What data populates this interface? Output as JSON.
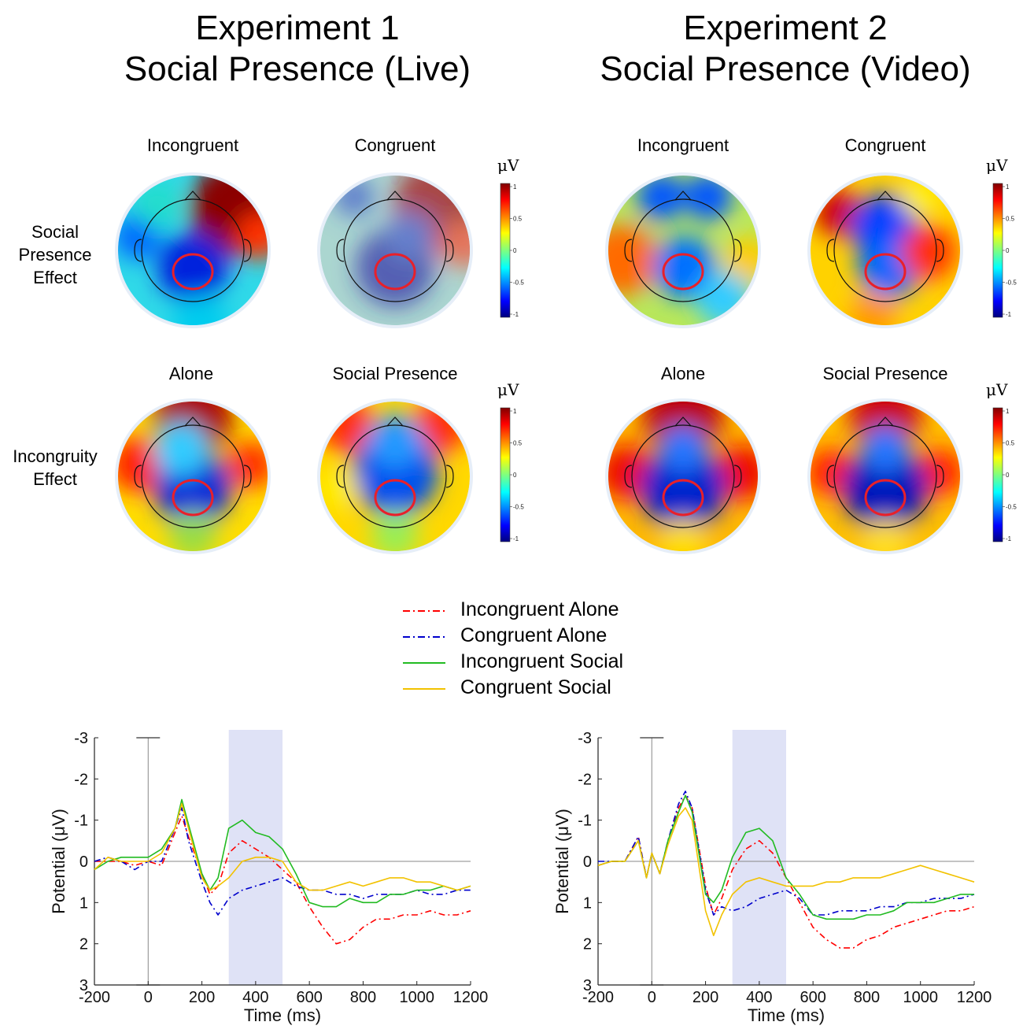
{
  "experiments": [
    {
      "title_line1": "Experiment 1",
      "title_line2": "Social Presence (Live)",
      "map_labels": {
        "row1_left": "Incongruent",
        "row1_right": "Congruent",
        "row2_left": "Alone",
        "row2_right": "Social Presence"
      }
    },
    {
      "title_line1": "Experiment 2",
      "title_line2": "Social Presence (Video)",
      "map_labels": {
        "row1_left": "Incongruent",
        "row1_right": "Congruent",
        "row2_left": "Alone",
        "row2_right": "Social Presence"
      }
    }
  ],
  "row_labels": {
    "row1_line1": "Social",
    "row1_line2": "Presence",
    "row1_line3": "Effect",
    "row2_line1": "Incongruity",
    "row2_line2": "Effect"
  },
  "colorbar": {
    "unit": "μV",
    "ticks": [
      "1",
      "0.5",
      "0",
      "-0.5",
      "-1"
    ],
    "colormap": "jet"
  },
  "legend": [
    {
      "label": "Incongruent Alone",
      "color": "#ff0000",
      "style": "dash-dot"
    },
    {
      "label": "Congruent Alone",
      "color": "#0000cc",
      "style": "dash-dot"
    },
    {
      "label": "Incongruent Social",
      "color": "#22bb22",
      "style": "solid"
    },
    {
      "label": "Congruent Social",
      "color": "#f2c200",
      "style": "solid"
    }
  ],
  "chart_data": [
    {
      "type": "line",
      "xlabel": "Time (ms)",
      "ylabel": "Potential (μV)",
      "xlim": [
        -200,
        1200
      ],
      "ylim": [
        -3,
        3
      ],
      "y_reversed": true,
      "xticks": [
        -200,
        0,
        200,
        400,
        600,
        800,
        1000,
        1200
      ],
      "yticks": [
        -3,
        -2,
        -1,
        0,
        1,
        2,
        3
      ],
      "shaded_window": [
        300,
        500
      ],
      "series": [
        {
          "name": "Incongruent Alone",
          "x": [
            -200,
            -150,
            -100,
            -50,
            0,
            50,
            100,
            125,
            150,
            200,
            230,
            260,
            300,
            350,
            400,
            450,
            500,
            550,
            600,
            650,
            700,
            750,
            800,
            850,
            900,
            950,
            1000,
            1050,
            1100,
            1150,
            1200
          ],
          "y": [
            0.0,
            0.0,
            0.0,
            0.1,
            0.0,
            0.1,
            -0.7,
            -1.1,
            -0.6,
            0.3,
            0.8,
            0.6,
            -0.2,
            -0.5,
            -0.3,
            -0.1,
            0.2,
            0.5,
            1.1,
            1.6,
            2.0,
            1.9,
            1.6,
            1.4,
            1.4,
            1.3,
            1.3,
            1.2,
            1.3,
            1.3,
            1.2
          ]
        },
        {
          "name": "Congruent Alone",
          "x": [
            -200,
            -150,
            -100,
            -50,
            0,
            50,
            100,
            125,
            150,
            200,
            230,
            260,
            300,
            350,
            400,
            450,
            500,
            550,
            600,
            650,
            700,
            750,
            800,
            850,
            900,
            950,
            1000,
            1050,
            1100,
            1150,
            1200
          ],
          "y": [
            0.0,
            -0.1,
            0.0,
            0.2,
            0.0,
            0.0,
            -0.8,
            -1.3,
            -0.5,
            0.5,
            1.0,
            1.3,
            0.9,
            0.7,
            0.6,
            0.5,
            0.4,
            0.6,
            0.7,
            0.7,
            0.8,
            0.8,
            0.9,
            0.8,
            0.8,
            0.8,
            0.7,
            0.8,
            0.8,
            0.7,
            0.7
          ]
        },
        {
          "name": "Incongruent Social",
          "x": [
            -200,
            -150,
            -100,
            -50,
            0,
            50,
            100,
            125,
            150,
            200,
            230,
            260,
            300,
            350,
            400,
            450,
            500,
            550,
            600,
            650,
            700,
            750,
            800,
            850,
            900,
            950,
            1000,
            1050,
            1100,
            1150,
            1200
          ],
          "y": [
            0.2,
            0.0,
            -0.1,
            -0.1,
            -0.1,
            -0.3,
            -0.8,
            -1.5,
            -0.9,
            0.3,
            0.7,
            0.4,
            -0.8,
            -1.0,
            -0.7,
            -0.6,
            -0.3,
            0.3,
            1.0,
            1.1,
            1.1,
            0.9,
            1.0,
            1.0,
            0.8,
            0.8,
            0.7,
            0.7,
            0.6,
            0.7,
            0.6
          ]
        },
        {
          "name": "Congruent Social",
          "x": [
            -200,
            -150,
            -100,
            -50,
            0,
            50,
            100,
            125,
            150,
            200,
            230,
            260,
            300,
            350,
            400,
            450,
            500,
            550,
            600,
            650,
            700,
            750,
            800,
            850,
            900,
            950,
            1000,
            1050,
            1100,
            1150,
            1200
          ],
          "y": [
            0.2,
            -0.1,
            0.0,
            0.0,
            0.0,
            -0.2,
            -0.8,
            -1.4,
            -0.8,
            0.4,
            0.7,
            0.6,
            0.4,
            0.0,
            -0.1,
            -0.1,
            0.0,
            0.5,
            0.7,
            0.7,
            0.6,
            0.5,
            0.6,
            0.5,
            0.4,
            0.4,
            0.5,
            0.5,
            0.6,
            0.7,
            0.6
          ]
        }
      ]
    },
    {
      "type": "line",
      "xlabel": "Time (ms)",
      "ylabel": "Potential (μV)",
      "xlim": [
        -200,
        1200
      ],
      "ylim": [
        -3,
        3
      ],
      "y_reversed": true,
      "xticks": [
        -200,
        0,
        200,
        400,
        600,
        800,
        1000,
        1200
      ],
      "yticks": [
        -3,
        -2,
        -1,
        0,
        1,
        2,
        3
      ],
      "shaded_window": [
        300,
        500
      ],
      "series": [
        {
          "name": "Incongruent Alone",
          "x": [
            -200,
            -150,
            -100,
            -50,
            -20,
            0,
            30,
            60,
            100,
            125,
            150,
            200,
            230,
            260,
            300,
            350,
            400,
            450,
            500,
            550,
            600,
            650,
            700,
            750,
            800,
            850,
            900,
            950,
            1000,
            1050,
            1100,
            1150,
            1200
          ],
          "y": [
            0.1,
            0.0,
            0.0,
            -0.6,
            0.4,
            -0.2,
            0.3,
            -0.5,
            -1.3,
            -1.6,
            -1.3,
            0.6,
            1.3,
            0.9,
            0.2,
            -0.3,
            -0.5,
            -0.2,
            0.4,
            1.0,
            1.6,
            1.9,
            2.1,
            2.1,
            1.9,
            1.8,
            1.6,
            1.5,
            1.4,
            1.3,
            1.2,
            1.2,
            1.1
          ]
        },
        {
          "name": "Congruent Alone",
          "x": [
            -200,
            -150,
            -100,
            -50,
            -20,
            0,
            30,
            60,
            100,
            125,
            150,
            200,
            230,
            260,
            300,
            350,
            400,
            450,
            500,
            550,
            600,
            650,
            700,
            750,
            800,
            850,
            900,
            950,
            1000,
            1050,
            1100,
            1150,
            1200
          ],
          "y": [
            0.0,
            0.0,
            0.0,
            -0.6,
            0.4,
            -0.2,
            0.3,
            -0.5,
            -1.4,
            -1.7,
            -1.3,
            0.7,
            1.3,
            1.1,
            1.2,
            1.1,
            0.9,
            0.8,
            0.7,
            0.9,
            1.3,
            1.3,
            1.2,
            1.2,
            1.2,
            1.1,
            1.1,
            1.0,
            1.0,
            0.9,
            0.9,
            0.9,
            0.8
          ]
        },
        {
          "name": "Incongruent Social",
          "x": [
            -200,
            -150,
            -100,
            -50,
            -20,
            0,
            30,
            60,
            100,
            125,
            150,
            200,
            230,
            260,
            300,
            350,
            400,
            450,
            500,
            550,
            600,
            650,
            700,
            750,
            800,
            850,
            900,
            950,
            1000,
            1050,
            1100,
            1150,
            1200
          ],
          "y": [
            0.1,
            0.0,
            0.0,
            -0.5,
            0.4,
            -0.2,
            0.3,
            -0.5,
            -1.2,
            -1.6,
            -1.2,
            0.8,
            1.0,
            0.7,
            -0.1,
            -0.7,
            -0.8,
            -0.5,
            0.4,
            0.8,
            1.3,
            1.4,
            1.4,
            1.4,
            1.3,
            1.3,
            1.2,
            1.0,
            1.0,
            1.0,
            0.9,
            0.8,
            0.8
          ]
        },
        {
          "name": "Congruent Social",
          "x": [
            -200,
            -150,
            -100,
            -50,
            -20,
            0,
            30,
            60,
            100,
            125,
            150,
            200,
            230,
            260,
            300,
            350,
            400,
            450,
            500,
            550,
            600,
            650,
            700,
            750,
            800,
            850,
            900,
            950,
            1000,
            1050,
            1100,
            1150,
            1200
          ],
          "y": [
            0.1,
            0.0,
            0.0,
            -0.5,
            0.4,
            -0.2,
            0.3,
            -0.4,
            -1.1,
            -1.3,
            -1.0,
            1.2,
            1.8,
            1.3,
            0.8,
            0.5,
            0.4,
            0.5,
            0.6,
            0.6,
            0.6,
            0.5,
            0.5,
            0.4,
            0.4,
            0.4,
            0.3,
            0.2,
            0.1,
            0.2,
            0.3,
            0.4,
            0.5
          ]
        }
      ]
    }
  ]
}
